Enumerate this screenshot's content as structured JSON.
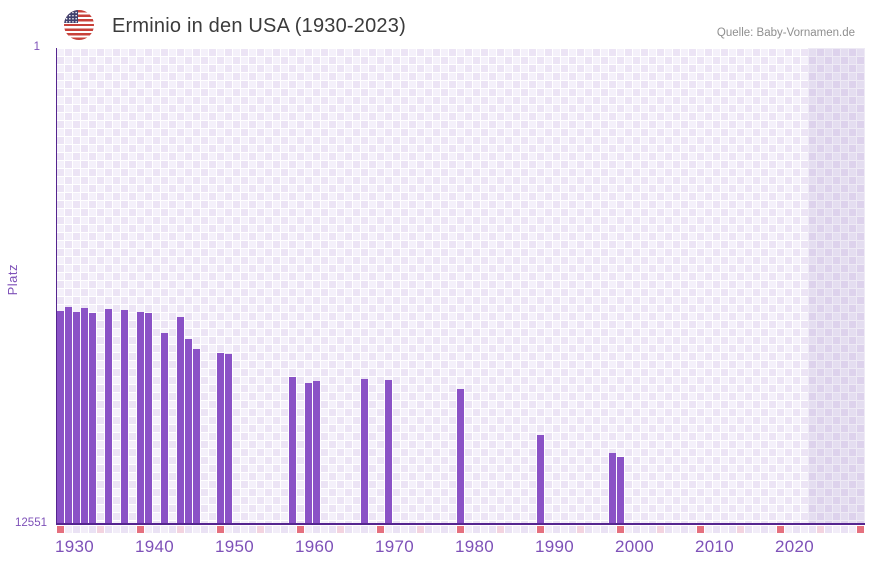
{
  "header": {
    "title": "Erminio in den USA (1930-2023)",
    "source": "Quelle: Baby-Vornamen.de",
    "flag_icon": "us-flag-icon"
  },
  "chart_data": {
    "type": "bar",
    "title": "Erminio in den USA (1930-2023)",
    "xlabel": "",
    "ylabel": "Platz",
    "x_range": [
      1930,
      2030
    ],
    "data_end_year": 2023,
    "x_ticks": [
      "1930",
      "1940",
      "1950",
      "1960",
      "1970",
      "1980",
      "1990",
      "2000",
      "2010",
      "2020"
    ],
    "x_tick_years": [
      1930,
      1940,
      1950,
      1960,
      1970,
      1980,
      1990,
      2000,
      2010,
      2020
    ],
    "y_axis": {
      "top_label": "1",
      "bottom_label": "12551",
      "min": 1,
      "max": 12551,
      "scale": "log",
      "inverted": true
    },
    "series": [
      {
        "name": "Platz",
        "points": [
          {
            "year": 1930,
            "rank": 184
          },
          {
            "year": 1931,
            "rank": 170
          },
          {
            "year": 1932,
            "rank": 188
          },
          {
            "year": 1933,
            "rank": 173
          },
          {
            "year": 1934,
            "rank": 192
          },
          {
            "year": 1936,
            "rank": 177
          },
          {
            "year": 1938,
            "rank": 181
          },
          {
            "year": 1940,
            "rank": 188
          },
          {
            "year": 1941,
            "rank": 192
          },
          {
            "year": 1943,
            "rank": 285
          },
          {
            "year": 1945,
            "rank": 207
          },
          {
            "year": 1946,
            "rank": 321
          },
          {
            "year": 1947,
            "rank": 391
          },
          {
            "year": 1950,
            "rank": 423
          },
          {
            "year": 1951,
            "rank": 432
          },
          {
            "year": 1959,
            "rank": 681
          },
          {
            "year": 1961,
            "rank": 767
          },
          {
            "year": 1962,
            "rank": 737
          },
          {
            "year": 1968,
            "rank": 709
          },
          {
            "year": 1971,
            "rank": 723
          },
          {
            "year": 1980,
            "rank": 864
          },
          {
            "year": 1990,
            "rank": 2150
          },
          {
            "year": 1999,
            "rank": 3073
          },
          {
            "year": 2000,
            "rank": 3326
          }
        ]
      }
    ],
    "decade_marker_years": [
      1930,
      1940,
      1950,
      1960,
      1970,
      1980,
      1990,
      2000,
      2010,
      2020,
      2030
    ],
    "half_decade_marker_years": [
      1935,
      1945,
      1955,
      1965,
      1975,
      1985,
      1995,
      2005,
      2015,
      2025
    ],
    "future_band": {
      "start_year": 2024,
      "end_year": 2030
    },
    "legend": null,
    "grid": "checkered"
  },
  "colors": {
    "bar": "#8a52c6",
    "axis_line": "#55258f",
    "tick_label": "#7e51b8",
    "title_text": "#3b3b3b",
    "source_text": "#8f8f8f",
    "cell_light": "#f4f0fa",
    "cell_dark": "#ece4f5",
    "future_overlay": "rgba(122,90,180,0.13)",
    "marker_decade": "#e5707e",
    "marker_half_decade": "#f3d3df",
    "strip_cell_a": "#f2edf8",
    "strip_cell_b": "#eae2f4"
  }
}
